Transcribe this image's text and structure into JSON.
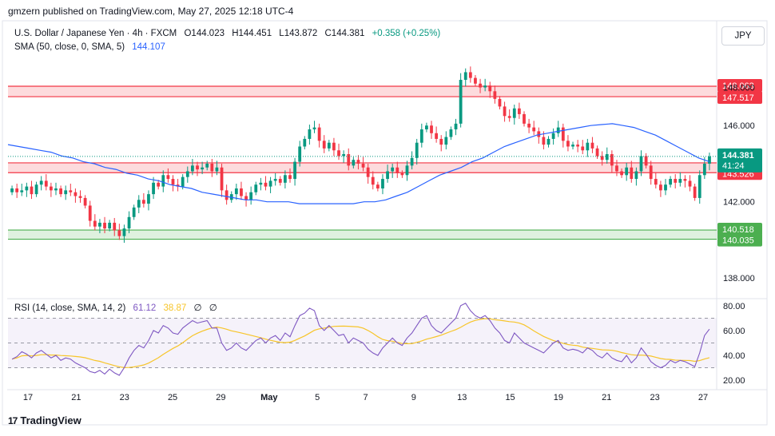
{
  "header": {
    "published": "gmzern published on TradingView.com, May 27, 2025 12:18 UTC-4"
  },
  "legend": {
    "symbol": "U.S. Dollar / Japanese Yen · 4h · FXCM",
    "o_label": "O",
    "o": "144.023",
    "h_label": "H",
    "h": "144.451",
    "l_label": "L",
    "l": "143.872",
    "c_label": "C",
    "c": "144.381",
    "change": "+0.358 (+0.25%)",
    "sma_title": "SMA (50, close, 0, SMA, 5)",
    "sma_value": "144.107",
    "rsi_title": "RSI (14, close, SMA, 14, 2)",
    "rsi_value": "61.12",
    "rsi_ma_value": "38.87",
    "rsi_extra1": "∅",
    "rsi_extra2": "∅"
  },
  "currency_button": "JPY",
  "footer": {
    "brand": "TradingView",
    "logo": "17"
  },
  "colors": {
    "up": "#089981",
    "down": "#f23645",
    "sma": "#2962ff",
    "rsi": "#7e57c2",
    "rsi_ma": "#f7c529",
    "resistance_zone": "#f23645",
    "support_zone": "#4caf50"
  },
  "chart_data": {
    "type": "candlestick",
    "price_axis": {
      "ticks": [
        "148.000",
        "146.000",
        "142.000",
        "138.000"
      ],
      "tick_values": [
        148,
        146,
        142,
        138
      ],
      "range": [
        137,
        151.5
      ]
    },
    "x_axis": {
      "tick_labels": [
        "17",
        "21",
        "23",
        "25",
        "29",
        "May",
        "5",
        "7",
        "9",
        "13",
        "15",
        "19",
        "21",
        "23",
        "27"
      ]
    },
    "zones": [
      {
        "kind": "resistance",
        "top": 148.063,
        "bottom": 147.517,
        "top_label": "148.063",
        "bottom_label": "147.517"
      },
      {
        "kind": "pivot",
        "top": 144.043,
        "bottom": 143.526,
        "top_label": "144.043",
        "bottom_label": "143.526"
      },
      {
        "kind": "support",
        "top": 140.518,
        "bottom": 140.035,
        "top_label": "140.518",
        "bottom_label": "140.035"
      }
    ],
    "last_price": {
      "value": 144.381,
      "label": "144.381",
      "countdown": "41:24"
    },
    "closes": [
      142.7,
      142.5,
      142.6,
      142.8,
      142.4,
      142.9,
      143.1,
      142.8,
      142.6,
      142.7,
      142.4,
      142.6,
      142.5,
      142.3,
      142.2,
      141.8,
      141.0,
      140.7,
      140.9,
      140.6,
      140.9,
      140.5,
      140.2,
      140.6,
      141.2,
      141.7,
      142.1,
      141.9,
      142.4,
      143.0,
      142.8,
      143.4,
      143.2,
      142.9,
      142.8,
      143.3,
      143.6,
      143.9,
      143.7,
      143.8,
      144.0,
      143.6,
      143.8,
      142.6,
      142.1,
      142.4,
      142.7,
      142.3,
      142.1,
      142.5,
      142.9,
      143.0,
      142.8,
      143.1,
      143.2,
      143.0,
      143.4,
      143.2,
      144.1,
      144.9,
      145.3,
      145.8,
      145.9,
      145.2,
      144.8,
      145.1,
      144.7,
      144.4,
      144.5,
      143.9,
      144.2,
      144.0,
      143.8,
      143.3,
      142.9,
      142.7,
      143.2,
      143.6,
      143.8,
      143.5,
      143.4,
      143.9,
      144.3,
      145.1,
      145.8,
      146.0,
      145.6,
      145.3,
      145.0,
      145.4,
      145.8,
      146.1,
      148.4,
      148.8,
      148.5,
      148.2,
      148.0,
      148.1,
      147.8,
      147.4,
      147.0,
      146.5,
      146.4,
      146.9,
      146.6,
      146.1,
      145.9,
      145.7,
      145.4,
      145.0,
      145.3,
      145.6,
      145.9,
      145.2,
      144.9,
      145.0,
      144.9,
      144.7,
      145.1,
      144.8,
      144.4,
      144.2,
      144.5,
      143.9,
      143.6,
      143.4,
      143.8,
      143.2,
      143.6,
      144.4,
      143.9,
      143.2,
      142.9,
      142.6,
      142.9,
      143.2,
      143.0,
      143.2,
      143.1,
      142.8,
      142.2,
      143.4,
      144.0,
      144.381
    ],
    "opens_note": "open of each candle equals previous close",
    "sma50": [
      145.0,
      144.9,
      144.8,
      144.7,
      144.6,
      144.4,
      144.3,
      144.1,
      144.0,
      143.8,
      143.7,
      143.5,
      143.4,
      143.2,
      143.1,
      142.9,
      142.8,
      142.7,
      142.5,
      142.4,
      142.3,
      142.2,
      142.1,
      142.1,
      142.0,
      142.0,
      142.0,
      141.9,
      141.9,
      141.9,
      141.9,
      141.9,
      141.9,
      142.0,
      142.0,
      142.1,
      142.3,
      142.5,
      142.8,
      143.1,
      143.4,
      143.6,
      143.8,
      144.1,
      144.3,
      144.6,
      144.9,
      145.1,
      145.3,
      145.5,
      145.6,
      145.7,
      145.8,
      145.9,
      146.0,
      146.05,
      146.1,
      146.0,
      145.9,
      145.7,
      145.5,
      145.2,
      144.9,
      144.6,
      144.3,
      144.107
    ],
    "rsi": [
      37,
      39,
      43,
      41,
      38,
      42,
      44,
      41,
      38,
      40,
      36,
      38,
      37,
      34,
      32,
      30,
      27,
      26,
      28,
      25,
      29,
      26,
      24,
      30,
      38,
      44,
      48,
      46,
      52,
      60,
      58,
      64,
      62,
      58,
      57,
      62,
      65,
      68,
      66,
      67,
      68,
      62,
      62,
      50,
      44,
      46,
      50,
      46,
      44,
      48,
      52,
      54,
      50,
      54,
      56,
      52,
      58,
      55,
      64,
      72,
      74,
      78,
      76,
      64,
      60,
      64,
      60,
      56,
      57,
      50,
      54,
      52,
      50,
      45,
      42,
      40,
      46,
      50,
      54,
      50,
      48,
      54,
      58,
      64,
      70,
      72,
      64,
      60,
      58,
      62,
      66,
      70,
      80,
      82,
      76,
      72,
      70,
      72,
      68,
      62,
      58,
      52,
      50,
      58,
      54,
      50,
      48,
      46,
      44,
      42,
      46,
      50,
      52,
      46,
      44,
      45,
      44,
      42,
      46,
      44,
      40,
      38,
      42,
      38,
      36,
      35,
      40,
      34,
      38,
      46,
      41,
      35,
      32,
      30,
      32,
      36,
      34,
      36,
      35,
      33,
      31,
      42,
      56,
      61.12
    ],
    "rsi_axis": {
      "ticks": [
        "80.00",
        "60.00",
        "40.00",
        "20.00"
      ],
      "tick_values": [
        80,
        60,
        40,
        20
      ],
      "bands": [
        70,
        50,
        30
      ]
    }
  }
}
